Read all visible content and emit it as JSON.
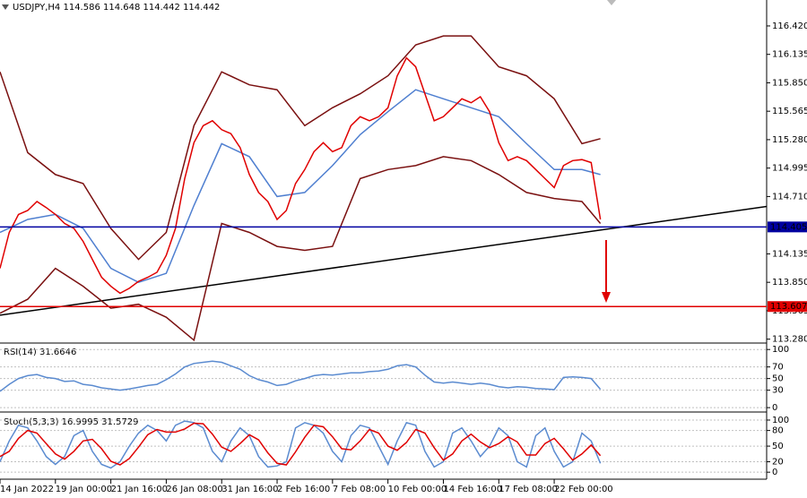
{
  "chart_data": [
    {
      "type": "line",
      "title": "USDJPY,H4  114.586 114.648 114.442 114.442",
      "xlim": [
        0,
        83
      ],
      "categories": [
        "14 Jan 2022",
        null,
        null,
        null,
        null,
        null,
        "19 Jan 00:00",
        null,
        null,
        null,
        null,
        null,
        "21 Jan 16:00",
        null,
        null,
        null,
        null,
        null,
        "26 Jan 08:00",
        null,
        null,
        null,
        null,
        null,
        "31 Jan 16:00",
        null,
        null,
        null,
        null,
        null,
        "2 Feb 16:00",
        null,
        null,
        null,
        null,
        null,
        "7 Feb 08:00",
        null,
        null,
        null,
        null,
        null,
        "10 Feb 00:00",
        null,
        null,
        null,
        null,
        null,
        "14 Feb 16:00",
        null,
        null,
        null,
        null,
        null,
        "17 Feb 08:00",
        null,
        null,
        null,
        null,
        null,
        "22 Feb 00:00",
        null,
        null,
        null,
        null,
        null
      ],
      "ylim": [
        113.25,
        116.68
      ],
      "yticks": [
        {
          "value": 116.42,
          "label": "116.420"
        },
        {
          "value": 116.135,
          "label": "116.135"
        },
        {
          "value": 115.85,
          "label": "115.850"
        },
        {
          "value": 115.565,
          "label": "115.565"
        },
        {
          "value": 115.28,
          "label": "115.280"
        },
        {
          "value": 114.995,
          "label": "114.995"
        },
        {
          "value": 114.71,
          "label": "114.710"
        },
        {
          "value": 114.135,
          "label": "114.135"
        },
        {
          "value": 113.85,
          "label": "113.850"
        },
        {
          "value": 113.565,
          "label": "113.565"
        },
        {
          "value": 113.28,
          "label": "113.280"
        }
      ],
      "grid": false,
      "series": [
        {
          "color": "#7a1010",
          "x": [
            0,
            3,
            6,
            9,
            12,
            15,
            18,
            21,
            24,
            27,
            30,
            33,
            36,
            39,
            42,
            45,
            48,
            51,
            54,
            57,
            60,
            63,
            65
          ],
          "values": [
            115.96,
            115.15,
            114.93,
            114.84,
            114.39,
            114.08,
            114.35,
            115.42,
            115.96,
            115.83,
            115.78,
            115.42,
            115.6,
            115.74,
            115.92,
            116.23,
            116.32,
            116.32,
            116.01,
            115.92,
            115.69,
            115.24,
            115.29
          ]
        },
        {
          "color": "#7a1010",
          "x": [
            0,
            3,
            6,
            9,
            12,
            15,
            18,
            21,
            24,
            27,
            30,
            33,
            36,
            39,
            42,
            45,
            48,
            51,
            54,
            57,
            60,
            63,
            65
          ],
          "values": [
            113.54,
            113.68,
            113.99,
            113.81,
            113.59,
            113.63,
            113.5,
            113.27,
            114.44,
            114.35,
            114.21,
            114.17,
            114.21,
            114.89,
            114.98,
            115.02,
            115.11,
            115.07,
            114.93,
            114.75,
            114.69,
            114.66,
            114.44
          ]
        },
        {
          "color": "#4f7fd0",
          "x": [
            0,
            3,
            6,
            9,
            12,
            15,
            18,
            21,
            24,
            27,
            30,
            33,
            36,
            39,
            42,
            45,
            48,
            51,
            54,
            57,
            60,
            63,
            65
          ],
          "values": [
            114.35,
            114.48,
            114.53,
            114.39,
            113.99,
            113.85,
            113.94,
            114.62,
            115.24,
            115.11,
            114.71,
            114.75,
            115.02,
            115.33,
            115.56,
            115.78,
            115.69,
            115.6,
            115.51,
            115.24,
            114.98,
            114.98,
            114.93
          ]
        },
        {
          "color": "#e00000",
          "values": [
            113.99,
            114.35,
            114.53,
            114.57,
            114.66,
            114.6,
            114.53,
            114.44,
            114.39,
            114.26,
            114.08,
            113.9,
            113.81,
            113.74,
            113.79,
            113.86,
            113.9,
            113.95,
            114.12,
            114.39,
            114.89,
            115.25,
            115.42,
            115.47,
            115.38,
            115.34,
            115.2,
            114.93,
            114.75,
            114.66,
            114.48,
            114.57,
            114.84,
            114.98,
            115.16,
            115.25,
            115.16,
            115.2,
            115.42,
            115.51,
            115.47,
            115.51,
            115.6,
            115.92,
            116.1,
            116.01,
            115.74,
            115.47,
            115.51,
            115.6,
            115.69,
            115.65,
            115.71,
            115.56,
            115.25,
            115.07,
            115.11,
            115.07,
            114.98,
            114.89,
            114.8,
            115.02,
            115.07,
            115.08,
            115.05,
            114.48
          ]
        }
      ],
      "levels": [
        {
          "value": 114.405,
          "color": "#0000a0"
        },
        {
          "value": 113.607,
          "color": "#e00000"
        }
      ],
      "trendline": {
        "x": [
          0,
          83
        ],
        "values": [
          113.52,
          114.61
        ],
        "color": "#000000"
      }
    },
    {
      "type": "line",
      "title": "RSI(14) 31.6646",
      "ylim": [
        -6,
        108
      ],
      "yticks": [
        100,
        70,
        50,
        30,
        0
      ],
      "grid": true,
      "series": [
        {
          "color": "#5b8bd0",
          "values": [
            28,
            40,
            50,
            55,
            57,
            52,
            50,
            45,
            46,
            40,
            38,
            34,
            32,
            30,
            32,
            35,
            38,
            40,
            48,
            58,
            70,
            76,
            78,
            80,
            78,
            72,
            66,
            55,
            48,
            44,
            38,
            40,
            46,
            50,
            55,
            57,
            56,
            58,
            60,
            60,
            62,
            63,
            66,
            72,
            74,
            70,
            56,
            44,
            42,
            44,
            42,
            40,
            42,
            40,
            36,
            34,
            36,
            35,
            33,
            32,
            31,
            52,
            53,
            52,
            50,
            31.66
          ]
        }
      ]
    },
    {
      "type": "line",
      "title": "Stoch(5,3,3) 16.9995 31.5729",
      "ylim": [
        -10,
        112
      ],
      "yticks": [
        100,
        80,
        50,
        20,
        0
      ],
      "grid": true,
      "series": [
        {
          "color": "#5b8bd0",
          "values": [
            20,
            60,
            90,
            85,
            60,
            30,
            15,
            30,
            70,
            80,
            40,
            15,
            8,
            20,
            50,
            75,
            90,
            80,
            60,
            90,
            98,
            95,
            85,
            40,
            20,
            60,
            85,
            70,
            30,
            10,
            12,
            20,
            85,
            95,
            90,
            75,
            40,
            20,
            70,
            90,
            85,
            50,
            15,
            60,
            95,
            90,
            40,
            10,
            20,
            75,
            85,
            60,
            30,
            50,
            85,
            70,
            20,
            10,
            70,
            85,
            40,
            10,
            20,
            75,
            60,
            17.0
          ]
        },
        {
          "color": "#e00000",
          "values": [
            30,
            40,
            65,
            80,
            75,
            55,
            35,
            25,
            40,
            60,
            63,
            45,
            21,
            14,
            26,
            48,
            72,
            82,
            77,
            77,
            83,
            94,
            93,
            73,
            48,
            40,
            55,
            72,
            62,
            37,
            17,
            14,
            39,
            67,
            90,
            87,
            68,
            45,
            43,
            60,
            82,
            75,
            50,
            42,
            57,
            82,
            75,
            47,
            23,
            35,
            60,
            73,
            58,
            47,
            55,
            68,
            58,
            33,
            33,
            55,
            65,
            45,
            23,
            35,
            52,
            31.57
          ]
        }
      ]
    }
  ]
}
